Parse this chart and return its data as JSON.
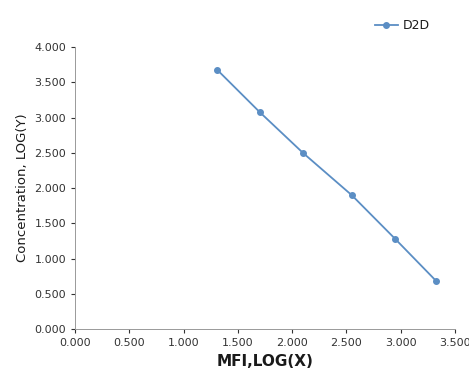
{
  "x": [
    1.308,
    1.7,
    2.1,
    2.55,
    2.95,
    3.33
  ],
  "y": [
    3.68,
    3.08,
    2.5,
    1.9,
    1.28,
    0.68
  ],
  "line_color": "#5b8ec4",
  "marker_style": "o",
  "marker_size": 4,
  "legend_label": "D2D",
  "xlabel": "MFI,LOG(X)",
  "ylabel": "Concentration, LOG(Y)",
  "xlim": [
    0.0,
    3.5
  ],
  "ylim": [
    0.0,
    4.0
  ],
  "xticks": [
    0.0,
    0.5,
    1.0,
    1.5,
    2.0,
    2.5,
    3.0,
    3.5
  ],
  "yticks": [
    0.0,
    0.5,
    1.0,
    1.5,
    2.0,
    2.5,
    3.0,
    3.5,
    4.0
  ],
  "xlabel_fontsize": 11,
  "ylabel_fontsize": 9.5,
  "tick_fontsize": 8,
  "legend_fontsize": 9,
  "background_color": "#ffffff"
}
